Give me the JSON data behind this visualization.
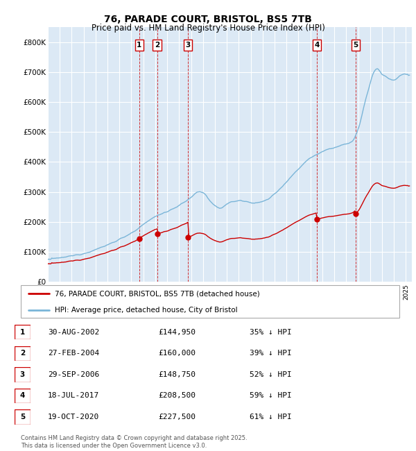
{
  "title": "76, PARADE COURT, BRISTOL, BS5 7TB",
  "subtitle": "Price paid vs. HM Land Registry's House Price Index (HPI)",
  "footer": "Contains HM Land Registry data © Crown copyright and database right 2025.\nThis data is licensed under the Open Government Licence v3.0.",
  "legend_entries": [
    "76, PARADE COURT, BRISTOL, BS5 7TB (detached house)",
    "HPI: Average price, detached house, City of Bristol"
  ],
  "table_rows": [
    {
      "label": "1",
      "date": "30-AUG-2002",
      "price": "£144,950",
      "note": "35% ↓ HPI"
    },
    {
      "label": "2",
      "date": "27-FEB-2004",
      "price": "£160,000",
      "note": "39% ↓ HPI"
    },
    {
      "label": "3",
      "date": "29-SEP-2006",
      "price": "£148,750",
      "note": "52% ↓ HPI"
    },
    {
      "label": "4",
      "date": "18-JUL-2017",
      "price": "£208,500",
      "note": "59% ↓ HPI"
    },
    {
      "label": "5",
      "date": "19-OCT-2020",
      "price": "£227,500",
      "note": "61% ↓ HPI"
    }
  ],
  "sale_x": [
    2002.659,
    2004.161,
    2006.747,
    2017.542,
    2020.803
  ],
  "sale_y": [
    144950,
    160000,
    148750,
    208500,
    227500
  ],
  "sale_labels": [
    "1",
    "2",
    "3",
    "4",
    "5"
  ],
  "ylim": [
    0,
    850000
  ],
  "yticks": [
    0,
    100000,
    200000,
    300000,
    400000,
    500000,
    600000,
    700000,
    800000
  ],
  "ytick_labels": [
    "£0",
    "£100K",
    "£200K",
    "£300K",
    "£400K",
    "£500K",
    "£600K",
    "£700K",
    "£800K"
  ],
  "xmin": 1995.0,
  "xmax": 2025.5,
  "bg_color": "#dce9f5",
  "grid_color": "#ffffff",
  "hpi_color": "#7ab5d8",
  "sold_color": "#cc0000",
  "vline_color": "#cc0000",
  "title_fontsize": 10,
  "subtitle_fontsize": 8.5
}
